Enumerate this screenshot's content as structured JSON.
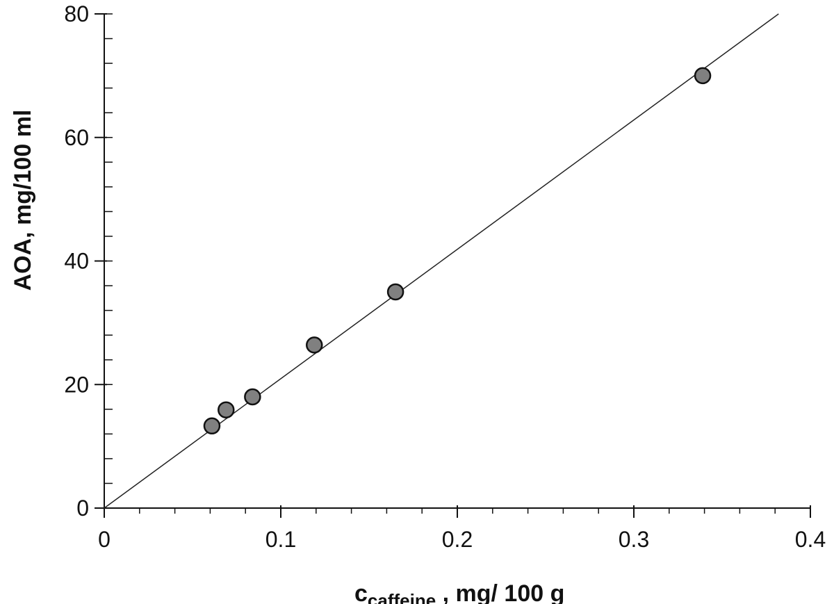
{
  "chart_data": {
    "type": "scatter",
    "xlabel": {
      "main": "c",
      "subscript": "caffeine",
      "units": " , mg/ 100 g"
    },
    "ylabel": "AOA, mg/100 ml",
    "xlim": [
      0,
      0.4
    ],
    "ylim": [
      0,
      80
    ],
    "xticks": [
      "0",
      "0.1",
      "0.2",
      "0.3",
      "0.4"
    ],
    "yticks": [
      "0",
      "20",
      "40",
      "60",
      "80"
    ],
    "x_major": [
      0,
      0.1,
      0.2,
      0.3,
      0.4
    ],
    "y_major": [
      0,
      20,
      40,
      60,
      80
    ],
    "x_minor_step": 0.02,
    "y_minor_step": 4,
    "grid": false,
    "series": [
      {
        "points": [
          {
            "x": 0.061,
            "y": 13.3
          },
          {
            "x": 0.069,
            "y": 15.9
          },
          {
            "x": 0.084,
            "y": 18.0
          },
          {
            "x": 0.119,
            "y": 26.4
          },
          {
            "x": 0.165,
            "y": 35.0
          },
          {
            "x": 0.339,
            "y": 70.0
          }
        ],
        "marker_fill": "#808080",
        "marker_stroke": "#111111"
      }
    ],
    "fit_line": {
      "x": [
        0,
        0.382
      ],
      "y": [
        0,
        80
      ]
    }
  }
}
